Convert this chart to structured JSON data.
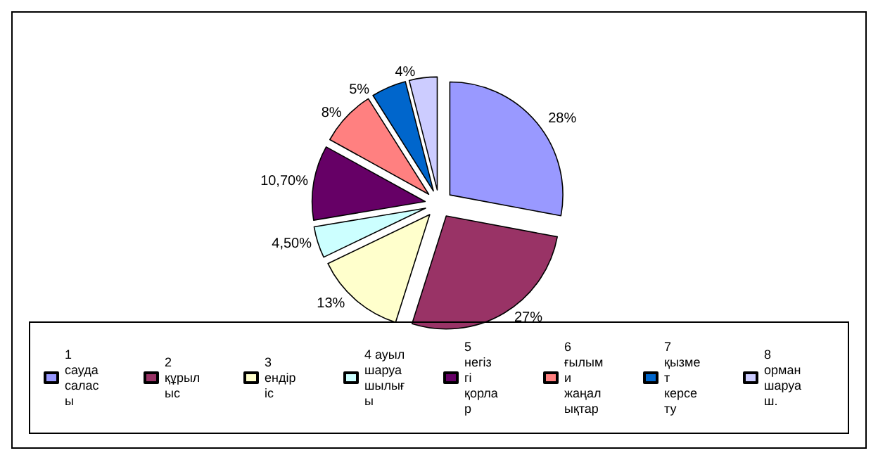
{
  "chart_data": {
    "type": "pie",
    "categories": [
      "1 сауда саласы",
      "2 құрылыс",
      "3 ендіріс",
      "4 ауыл шаруашылығы",
      "5 негізгі қорлар",
      "6 ғылыми жаңалықтар",
      "7 қызмет керсету",
      "8 орман шаруаш."
    ],
    "values": [
      28,
      27,
      13,
      4.5,
      10.7,
      8,
      5,
      4
    ],
    "value_labels": [
      "28%",
      "27%",
      "13%",
      "4,50%",
      "10,70%",
      "8%",
      "5%",
      "4%"
    ],
    "colors": [
      "#9999ff",
      "#993366",
      "#ffffcc",
      "#ccffff",
      "#660066",
      "#ff8080",
      "#0066cc",
      "#ccccff"
    ],
    "legend": "bottom"
  }
}
